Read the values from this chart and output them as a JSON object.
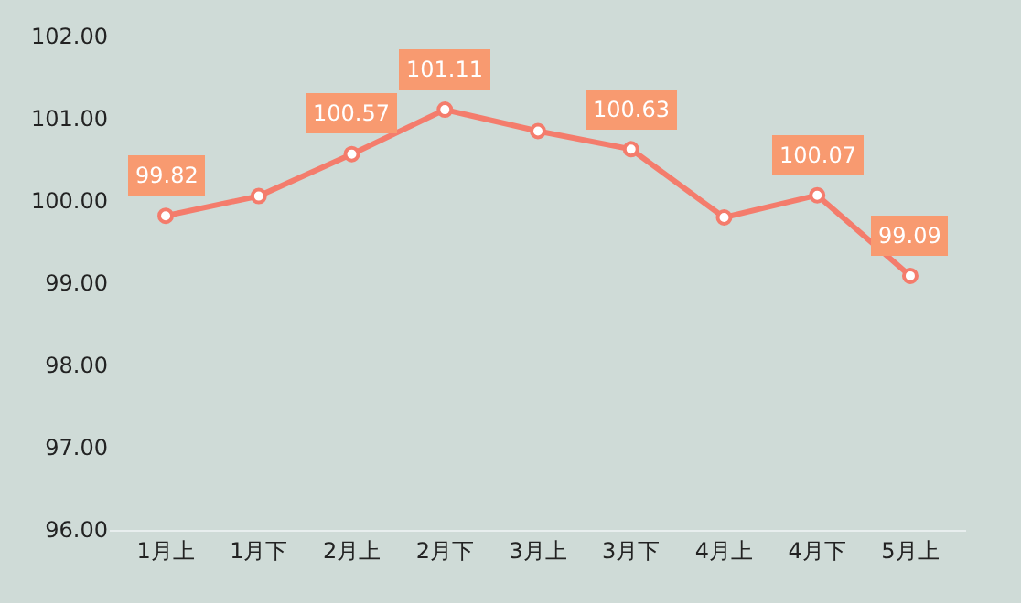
{
  "chart_data": {
    "type": "line",
    "categories": [
      "1月上",
      "1月下",
      "2月上",
      "2月下",
      "3月上",
      "3月下",
      "4月上",
      "4月下",
      "5月上"
    ],
    "series": [
      {
        "color": "#f47c6c",
        "values": [
          99.82,
          100.06,
          100.57,
          101.11,
          100.85,
          100.63,
          99.8,
          100.07,
          99.09
        ],
        "value_labels": [
          "99.82",
          null,
          "100.57",
          "101.11",
          null,
          "100.63",
          null,
          "100.07",
          "99.09"
        ]
      }
    ],
    "ylim": [
      96,
      102
    ],
    "yticks": [
      {
        "value": 96,
        "label": "96.00"
      },
      {
        "value": 97,
        "label": "97.00"
      },
      {
        "value": 98,
        "label": "98.00"
      },
      {
        "value": 99,
        "label": "99.00"
      },
      {
        "value": 100,
        "label": "100.00"
      },
      {
        "value": 101,
        "label": "101.00"
      },
      {
        "value": 102,
        "label": "102.00"
      }
    ],
    "grid": false,
    "legend": false,
    "marker": "circle",
    "line_style": "solid"
  }
}
